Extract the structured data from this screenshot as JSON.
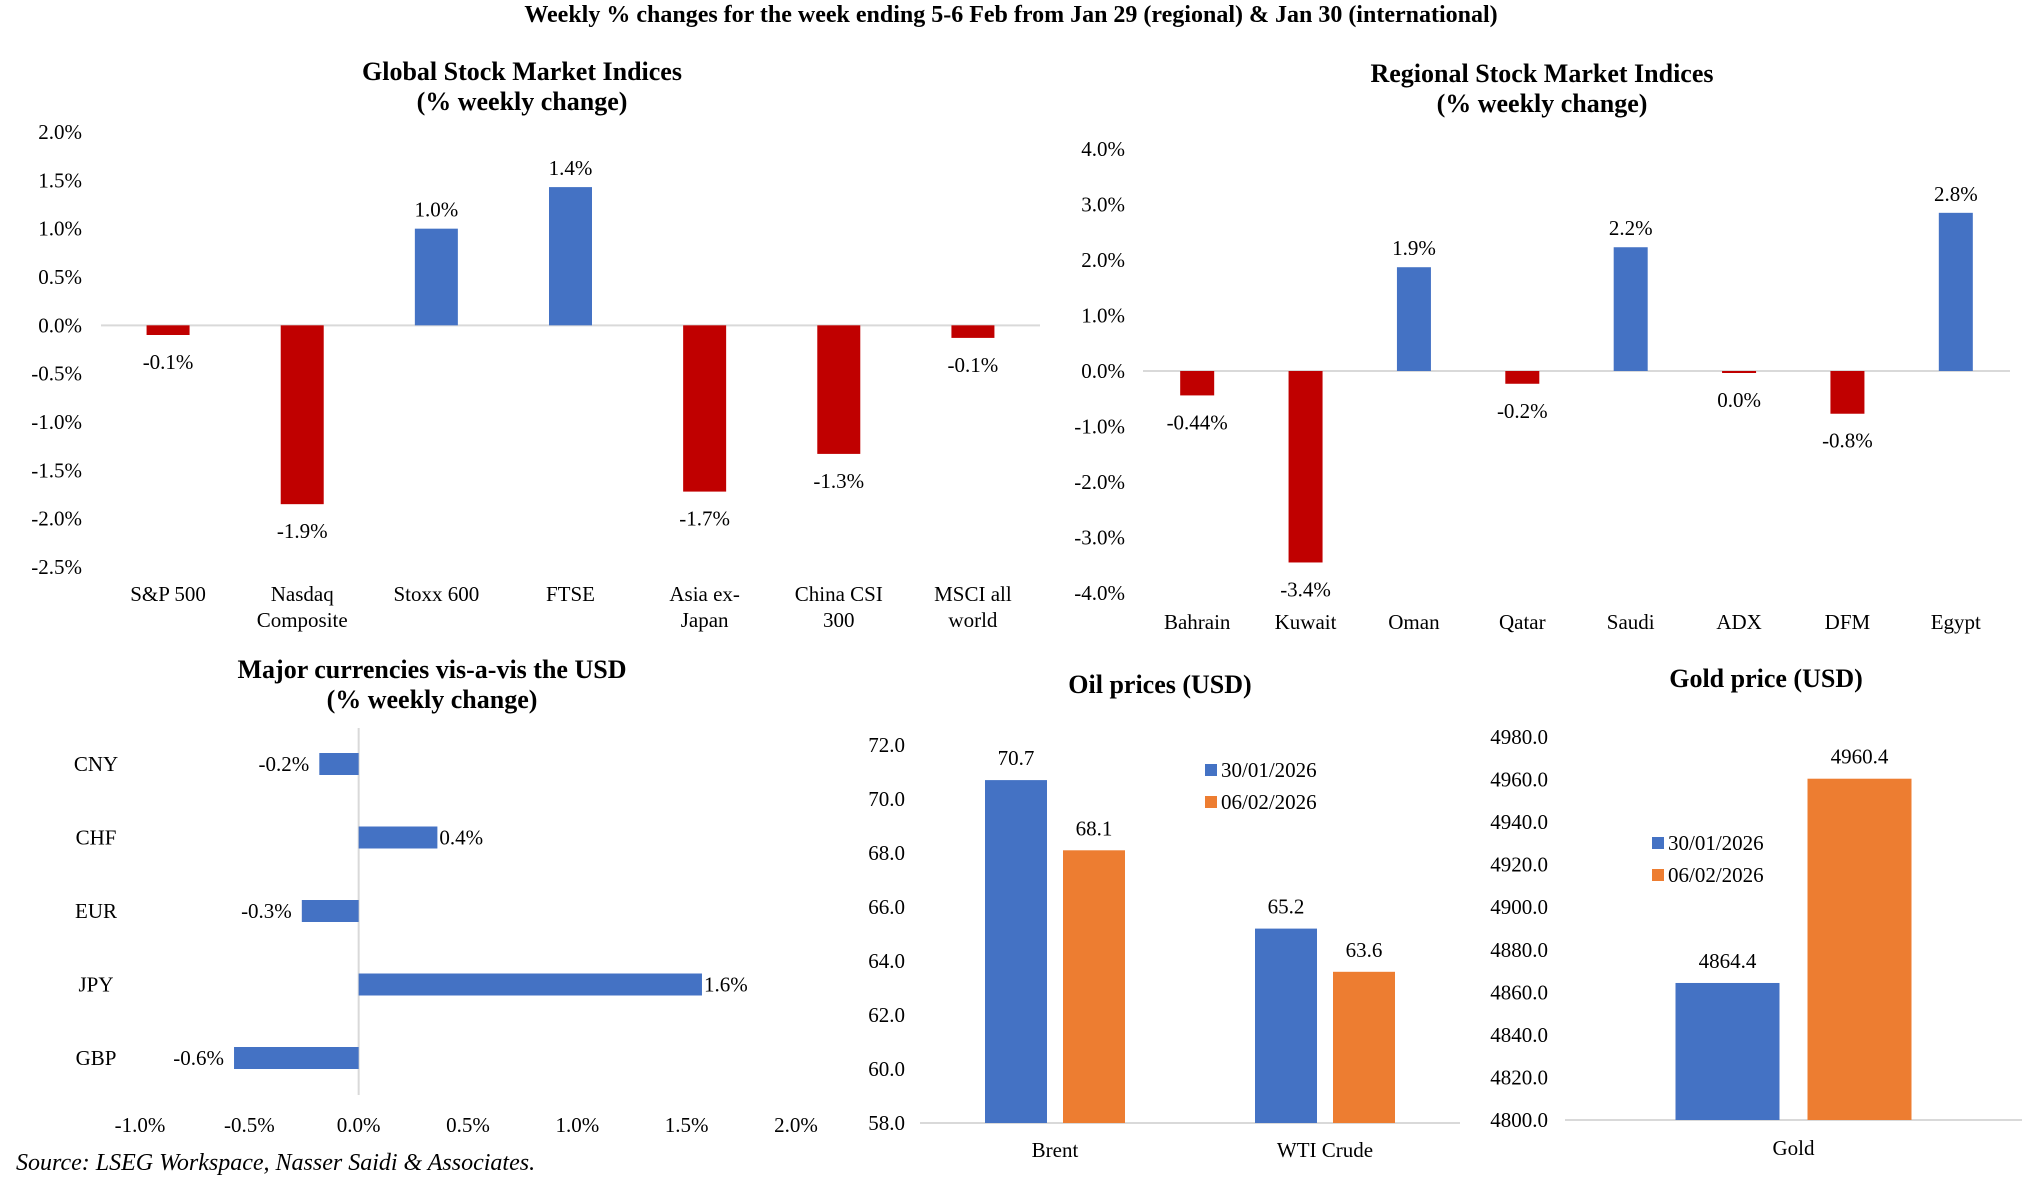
{
  "title": "Weekly % changes for the week ending 5-6 Feb from Jan 29 (regional) & Jan 30 (international)",
  "source": "Source: LSEG Workspace, Nasser Saidi & Associates.",
  "colors": {
    "positive": "#4472C4",
    "negative": "#C00000",
    "series1": "#4472C4",
    "series2": "#ED7D31",
    "axis": "#D9D9D9"
  },
  "chart_data": [
    {
      "id": "global",
      "type": "bar",
      "title": [
        "Global Stock Market Indices",
        "(% weekly change)"
      ],
      "categories": [
        [
          "S&P 500"
        ],
        [
          "Nasdaq",
          "Composite"
        ],
        [
          "Stoxx 600"
        ],
        [
          "FTSE"
        ],
        [
          "Asia ex-",
          "Japan"
        ],
        [
          "China CSI",
          "300"
        ],
        [
          "MSCI all",
          "world"
        ]
      ],
      "values": [
        -0.1,
        -1.85,
        1.0,
        1.43,
        -1.72,
        -1.33,
        -0.13
      ],
      "labels": [
        "-0.1%",
        "-1.9%",
        "1.0%",
        "1.4%",
        "-1.7%",
        "-1.3%",
        "-0.1%"
      ],
      "yticks": [
        "2.0%",
        "1.5%",
        "1.0%",
        "0.5%",
        "0.0%",
        "-0.5%",
        "-1.0%",
        "-1.5%",
        "-2.0%",
        "-2.5%"
      ],
      "ylim": [
        -2.5,
        2.0
      ],
      "xlabel": "",
      "ylabel": "",
      "grid": false
    },
    {
      "id": "regional",
      "type": "bar",
      "title": [
        "Regional Stock Market Indices",
        "(% weekly change)"
      ],
      "categories": [
        [
          "Bahrain"
        ],
        [
          "Kuwait"
        ],
        [
          "Oman"
        ],
        [
          "Qatar"
        ],
        [
          "Saudi"
        ],
        [
          "ADX"
        ],
        [
          "DFM"
        ],
        [
          "Egypt"
        ]
      ],
      "values": [
        -0.44,
        -3.45,
        1.87,
        -0.23,
        2.23,
        -0.03,
        -0.77,
        2.85
      ],
      "labels": [
        "-0.44%",
        "-3.4%",
        "1.9%",
        "-0.2%",
        "2.2%",
        "0.0%",
        "-0.8%",
        "2.8%"
      ],
      "yticks": [
        "4.0%",
        "3.0%",
        "2.0%",
        "1.0%",
        "0.0%",
        "-1.0%",
        "-2.0%",
        "-3.0%",
        "-4.0%"
      ],
      "ylim": [
        -4.0,
        4.0
      ],
      "xlabel": "",
      "ylabel": "",
      "grid": false
    },
    {
      "id": "currencies",
      "type": "bar",
      "orientation": "horizontal",
      "title": [
        "Major currencies vis-a-vis the USD",
        "(% weekly change)"
      ],
      "categories": [
        "CNY",
        "CHF",
        "EUR",
        "JPY",
        "GBP"
      ],
      "values": [
        -0.18,
        0.36,
        -0.26,
        1.57,
        -0.57
      ],
      "labels": [
        "-0.2%",
        "0.4%",
        "-0.3%",
        "1.6%",
        "-0.6%"
      ],
      "xticks": [
        "-1.0%",
        "-0.5%",
        "0.0%",
        "0.5%",
        "1.0%",
        "1.5%",
        "2.0%"
      ],
      "xlim": [
        -1.0,
        2.0
      ],
      "xlabel": "",
      "ylabel": "",
      "grid": false
    },
    {
      "id": "oil",
      "type": "bar",
      "title": [
        "Oil prices (USD)"
      ],
      "categories": [
        "Brent",
        "WTI Crude"
      ],
      "series": [
        {
          "name": "30/01/2026",
          "values": [
            70.7,
            65.2
          ],
          "labels": [
            "70.7",
            "65.2"
          ]
        },
        {
          "name": "06/02/2026",
          "values": [
            68.1,
            63.6
          ],
          "labels": [
            "68.1",
            "63.6"
          ]
        }
      ],
      "yticks": [
        "72.0",
        "70.0",
        "68.0",
        "66.0",
        "64.0",
        "62.0",
        "60.0",
        "58.0"
      ],
      "ylim": [
        58.0,
        72.0
      ],
      "legend": "top-right",
      "xlabel": "",
      "ylabel": "",
      "grid": false
    },
    {
      "id": "gold",
      "type": "bar",
      "title": [
        "Gold price (USD)"
      ],
      "categories": [
        "Gold"
      ],
      "series": [
        {
          "name": "30/01/2026",
          "values": [
            4864.4
          ],
          "labels": [
            "4864.4"
          ]
        },
        {
          "name": "06/02/2026",
          "values": [
            4960.4
          ],
          "labels": [
            "4960.4"
          ]
        }
      ],
      "yticks": [
        "4980.0",
        "4960.0",
        "4940.0",
        "4920.0",
        "4900.0",
        "4880.0",
        "4860.0",
        "4840.0",
        "4820.0",
        "4800.0"
      ],
      "ylim": [
        4800.0,
        4980.0
      ],
      "legend": "center-left",
      "xlabel": "",
      "ylabel": "",
      "grid": false
    }
  ]
}
